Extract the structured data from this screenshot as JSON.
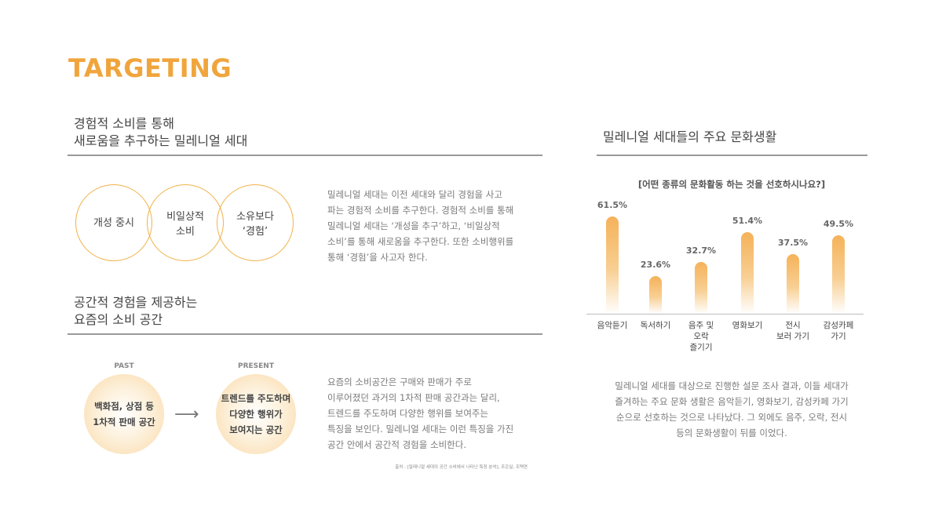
{
  "page_title": "TARGETING",
  "section1": {
    "heading_line1": "경험적 소비를 통해",
    "heading_line2": "새로움을 추구하는 밀레니얼 세대",
    "venn": [
      {
        "line1": "개성 중시",
        "line2": ""
      },
      {
        "line1": "비일상적",
        "line2": "소비"
      },
      {
        "line1": "소유보다",
        "line2": "‘경험’"
      }
    ],
    "paragraph": [
      "밀레니얼 세대는 이전 세대와 달리 경험을 사고",
      "파는 경험적 소비를 추구한다. 경험적 소비를 통해",
      "밀레니얼 세대는 ‘개성을 추구’하고, ‘비일상적",
      "소비’를 통해 새로움을 추구한다. 또한 소비행위를",
      "통해 ‘경험’을 사고자 한다."
    ]
  },
  "section2": {
    "heading_line1": "공간적 경험을 제공하는",
    "heading_line2": "요즘의 소비 공간",
    "past_label": "PAST",
    "present_label": "PRESENT",
    "past_line1": "백화점, 상점 등",
    "past_line2": "1차적 판매 공간",
    "arrow": "⟶",
    "present_line1": "트렌드를 주도하며",
    "present_line2": "다양한 행위가",
    "present_line3": "보여지는 공간",
    "paragraph": [
      "요즘의 소비공간은 구매와 판매가 주로",
      "이루어졌던 과거의 1차적 판매 공간과는 달리,",
      "트렌드를 주도하며 다양한 행위를 보여주는",
      "특징을 보인다. 밀레니얼 세대는 이런 특징을 가진",
      "공간 안에서 공간적 경험을 소비한다."
    ],
    "source": "출처 : [밀레니얼 세대의 공간 소비에서 나타난 특징 분석], 조은실, 조택연"
  },
  "section3": {
    "heading": "밀레니얼 세대들의 주요 문화생활",
    "note": [
      "밀레니얼 세대를 대상으로 진행한 설문 조사 결과, 이들 세대가",
      "즐겨하는 주요 문화 생활은 음악듣기, 영화보기, 감성카페 가기",
      "순으로 선호하는 것으로 나타났다. 그 외에도 음주, 오락, 전시",
      "등의 문화생활이 뒤를 이었다."
    ]
  },
  "chart_data": {
    "type": "bar",
    "title": "[어떤 종류의 문화활동 하는 것을 선호하시나요?]",
    "categories": [
      "음악듣기",
      "독서하기",
      "음주 및\n오락\n즐기기",
      "영화보기",
      "전시\n보러 가기",
      "감성카페\n가기"
    ],
    "values": [
      61.5,
      23.6,
      32.7,
      51.4,
      37.5,
      49.5
    ],
    "value_labels": [
      "61.5%",
      "23.6%",
      "32.7%",
      "51.4%",
      "37.5%",
      "49.5%"
    ],
    "ylim": [
      0,
      61.5
    ],
    "grid": false,
    "colors": {
      "bar_top": "#F5B25A",
      "bar_bottom": "#FFFFFF"
    }
  },
  "colors": {
    "accent": "#F0A53C",
    "rule": "#9a9a9a"
  }
}
